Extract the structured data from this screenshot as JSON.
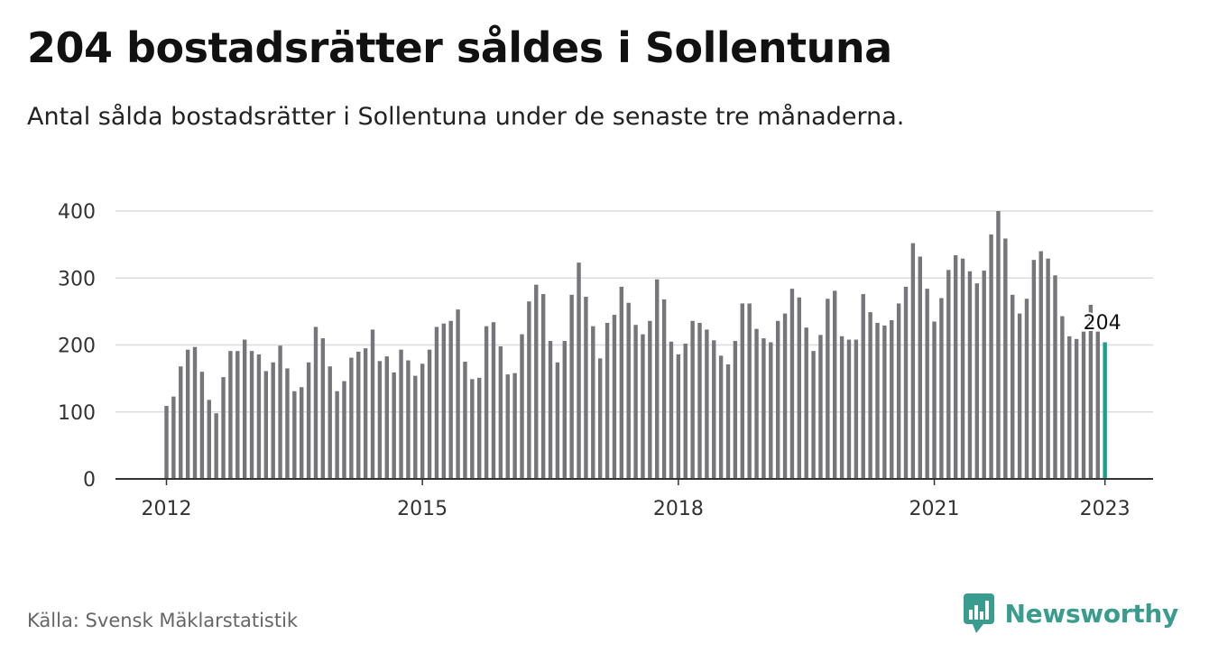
{
  "title": "204 bostadsrätter såldes i Sollentuna",
  "subtitle": "Antal sålda bostadsrätter i Sollentuna under de senaste tre månaderna.",
  "source": "Källa: Svensk Mäklarstatistik",
  "brand": {
    "name": "Newsworthy",
    "icon": "newsworthy-logo-icon",
    "color": "#3a9c8f"
  },
  "colors": {
    "bar": "#75757a",
    "highlight": "#1aa08e",
    "grid": "#dcdcdc",
    "axis": "#333333"
  },
  "chart_data": {
    "type": "bar",
    "x_start": "2012-01",
    "x_step": "month",
    "values": [
      109,
      123,
      168,
      193,
      197,
      160,
      118,
      98,
      152,
      191,
      191,
      208,
      191,
      186,
      161,
      174,
      199,
      165,
      131,
      137,
      174,
      227,
      210,
      168,
      131,
      146,
      181,
      190,
      195,
      223,
      176,
      183,
      159,
      193,
      177,
      154,
      172,
      193,
      227,
      232,
      236,
      253,
      175,
      149,
      151,
      228,
      234,
      198,
      156,
      158,
      216,
      265,
      290,
      276,
      206,
      174,
      206,
      275,
      323,
      272,
      228,
      180,
      233,
      245,
      287,
      263,
      230,
      216,
      236,
      298,
      268,
      205,
      186,
      202,
      236,
      233,
      223,
      207,
      184,
      171,
      206,
      262,
      262,
      224,
      210,
      204,
      236,
      247,
      284,
      271,
      226,
      191,
      215,
      269,
      281,
      213,
      208,
      208,
      276,
      249,
      233,
      229,
      237,
      262,
      287,
      352,
      332,
      284,
      235,
      270,
      312,
      334,
      329,
      310,
      292,
      311,
      365,
      400,
      359,
      275,
      247,
      269,
      327,
      340,
      329,
      304,
      243,
      213,
      209,
      220,
      260,
      220,
      204
    ],
    "highlight": {
      "index": 132,
      "value": 204,
      "label": "204"
    },
    "xticks": [
      {
        "index": 0,
        "label": "2012"
      },
      {
        "index": 36,
        "label": "2015"
      },
      {
        "index": 72,
        "label": "2018"
      },
      {
        "index": 108,
        "label": "2021"
      },
      {
        "index": 132,
        "label": "2023"
      }
    ],
    "yticks": [
      0,
      100,
      200,
      300,
      400
    ],
    "ylim": [
      0,
      400
    ],
    "grid": true,
    "xlabel": "",
    "ylabel": ""
  }
}
